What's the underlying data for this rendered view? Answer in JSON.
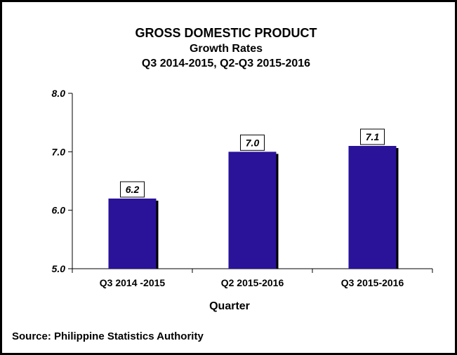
{
  "chart_data": {
    "type": "bar",
    "title": "GROSS DOMESTIC PRODUCT",
    "subtitle_lines": [
      "Growth Rates",
      "Q3 2014-2015, Q2-Q3 2015-2016"
    ],
    "categories": [
      "Q3 2014 -2015",
      "Q2 2015-2016",
      "Q3 2015-2016"
    ],
    "values": [
      6.2,
      7.0,
      7.1
    ],
    "value_labels": [
      "6.2",
      "7.0",
      "7.1"
    ],
    "xlabel": "Quarter",
    "ylabel": "",
    "ylim": [
      5.0,
      8.0
    ],
    "yticks": [
      5.0,
      6.0,
      7.0,
      8.0
    ],
    "ytick_labels": [
      "5.0",
      "6.0",
      "7.0",
      "8.0"
    ],
    "grid": false,
    "legend": "none",
    "bar_color": "#2A1299",
    "shadow_color": "#000000"
  },
  "source": "Source: Philippine Statistics Authority"
}
